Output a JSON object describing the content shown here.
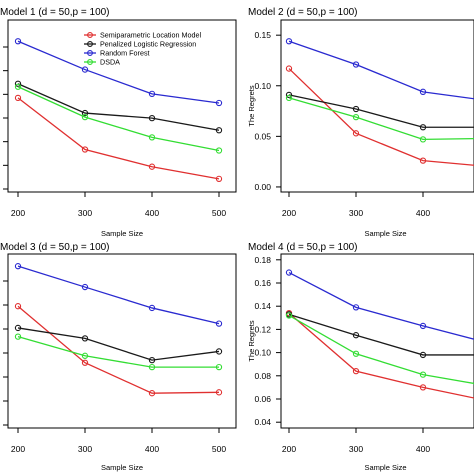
{
  "chart_data": [
    {
      "type": "line",
      "title": "Model 1 (d = 50,p = 100)",
      "xlabel": "Sample Size",
      "ylabel": "",
      "x": [
        200,
        300,
        400,
        500
      ],
      "ylim": [
        0,
        0.17
      ],
      "yticks": [],
      "legend": "top-right",
      "series": [
        {
          "name": "Semiparametric Location Model",
          "color": "#e03030",
          "values": [
            0.093,
            0.042,
            0.025,
            0.013
          ]
        },
        {
          "name": "Penalized Logistic Regression",
          "color": "#1a1a1a",
          "values": [
            0.107,
            0.078,
            0.073,
            0.061
          ]
        },
        {
          "name": "Random Forest",
          "color": "#2a2ad0",
          "values": [
            0.149,
            0.121,
            0.097,
            0.088
          ]
        },
        {
          "name": "DSDA",
          "color": "#33dd33",
          "values": [
            0.104,
            0.074,
            0.054,
            0.041
          ]
        }
      ]
    },
    {
      "type": "line",
      "title": "Model 2 (d = 50,p = 100)",
      "xlabel": "Sample Size",
      "ylabel": "The Regrets",
      "x": [
        200,
        300,
        400,
        500
      ],
      "ylim": [
        -0.005,
        0.165
      ],
      "yticks": [
        "0.00",
        "0.05",
        "0.10",
        "0.15"
      ],
      "series": [
        {
          "name": "Semiparametric Location Model",
          "color": "#e03030",
          "values": [
            0.117,
            0.053,
            0.026,
            0.02
          ]
        },
        {
          "name": "Penalized Logistic Regression",
          "color": "#1a1a1a",
          "values": [
            0.091,
            0.077,
            0.059,
            0.059
          ]
        },
        {
          "name": "Random Forest",
          "color": "#2a2ad0",
          "values": [
            0.144,
            0.121,
            0.094,
            0.085
          ]
        },
        {
          "name": "DSDA",
          "color": "#33dd33",
          "values": [
            0.088,
            0.069,
            0.047,
            0.048
          ]
        }
      ]
    },
    {
      "type": "line",
      "title": "Model 3 (d = 50,p = 100)",
      "xlabel": "Sample Size",
      "ylabel": "",
      "x": [
        200,
        300,
        400,
        500
      ],
      "ylim": [
        0,
        0.2
      ],
      "yticks": [],
      "series": [
        {
          "name": "Semiparametric Location Model",
          "color": "#e03030",
          "values": [
            0.14,
            0.075,
            0.04,
            0.041
          ]
        },
        {
          "name": "Penalized Logistic Regression",
          "color": "#1a1a1a",
          "values": [
            0.115,
            0.103,
            0.078,
            0.088
          ]
        },
        {
          "name": "Random Forest",
          "color": "#2a2ad0",
          "values": [
            0.186,
            0.162,
            0.138,
            0.12
          ]
        },
        {
          "name": "DSDA",
          "color": "#33dd33",
          "values": [
            0.105,
            0.083,
            0.07,
            0.07
          ]
        }
      ]
    },
    {
      "type": "line",
      "title": "Model 4 (d = 50,p = 100)",
      "xlabel": "Sample Size",
      "ylabel": "The Regrets",
      "x": [
        200,
        300,
        400,
        500
      ],
      "ylim": [
        0.035,
        0.185
      ],
      "yticks": [
        "0.04",
        "0.06",
        "0.08",
        "0.10",
        "0.12",
        "0.14",
        "0.16",
        "0.18"
      ],
      "series": [
        {
          "name": "Semiparametric Location Model",
          "color": "#e03030",
          "values": [
            0.134,
            0.084,
            0.07,
            0.058
          ]
        },
        {
          "name": "Penalized Logistic Regression",
          "color": "#1a1a1a",
          "values": [
            0.133,
            0.115,
            0.098,
            0.098
          ]
        },
        {
          "name": "Random Forest",
          "color": "#2a2ad0",
          "values": [
            0.169,
            0.139,
            0.123,
            0.108
          ]
        },
        {
          "name": "DSDA",
          "color": "#33dd33",
          "values": [
            0.132,
            0.099,
            0.081,
            0.071
          ]
        }
      ]
    }
  ]
}
